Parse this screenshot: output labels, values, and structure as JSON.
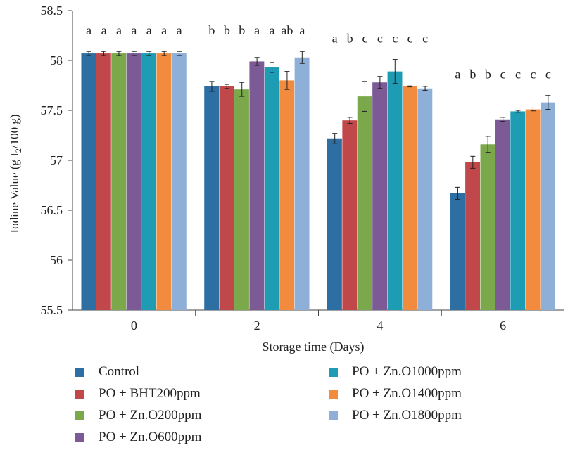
{
  "chart_data": {
    "type": "bar",
    "xlabel": "Storage time (Days)",
    "ylabel": "Iodine Value (g I2/100 g)",
    "ylabel_parts": {
      "before": "Iodine Value (g I",
      "sub": "2",
      "after": "/100 g)"
    },
    "ylim": [
      55.5,
      58.5
    ],
    "yticks": [
      "55.5",
      "56",
      "56.5",
      "57",
      "57.5",
      "58",
      "58.5"
    ],
    "categories": [
      "0",
      "2",
      "4",
      "6"
    ],
    "series": [
      {
        "name": "Control",
        "color": "#2e6fa3",
        "values": [
          58.07,
          57.74,
          57.22,
          56.67
        ],
        "errors": [
          0.02,
          0.05,
          0.05,
          0.06
        ]
      },
      {
        "name": "PO + BHT200ppm",
        "color": "#c0474a",
        "values": [
          58.07,
          57.74,
          57.4,
          56.98
        ],
        "errors": [
          0.02,
          0.02,
          0.03,
          0.06
        ]
      },
      {
        "name": "PO + Zn.O200ppm",
        "color": "#7aa84a",
        "values": [
          58.07,
          57.71,
          57.64,
          57.16
        ],
        "errors": [
          0.02,
          0.07,
          0.15,
          0.08
        ]
      },
      {
        "name": "PO + Zn.O600ppm",
        "color": "#7b5a96",
        "values": [
          58.07,
          57.99,
          57.78,
          57.41
        ],
        "errors": [
          0.02,
          0.04,
          0.06,
          0.02
        ]
      },
      {
        "name": "PO + Zn.O1000ppm",
        "color": "#1d9cb3",
        "values": [
          58.07,
          57.93,
          57.89,
          57.49
        ],
        "errors": [
          0.02,
          0.05,
          0.12,
          0.01
        ]
      },
      {
        "name": "PO + Zn.O1400ppm",
        "color": "#f28b3d",
        "values": [
          58.07,
          57.8,
          57.74,
          57.51
        ],
        "errors": [
          0.02,
          0.09,
          0.005,
          0.015
        ]
      },
      {
        "name": "PO + Zn.O1800ppm",
        "color": "#8eb0d8",
        "values": [
          58.07,
          58.03,
          57.72,
          57.58
        ],
        "errors": [
          0.02,
          0.06,
          0.02,
          0.07
        ]
      }
    ],
    "annotations": [
      {
        "category": "0",
        "labels": [
          "a",
          "a",
          "a",
          "a",
          "a",
          "a",
          "a"
        ]
      },
      {
        "category": "2",
        "labels": [
          "b",
          "b",
          "b",
          "a",
          "a",
          "ab",
          "a"
        ]
      },
      {
        "category": "4",
        "labels": [
          "a",
          "b",
          "c",
          "c",
          "c",
          "c",
          "c"
        ]
      },
      {
        "category": "6",
        "labels": [
          "a",
          "b",
          "b",
          "c",
          "c",
          "c",
          "c"
        ]
      }
    ],
    "legend_position": "bottom",
    "grid": false
  }
}
